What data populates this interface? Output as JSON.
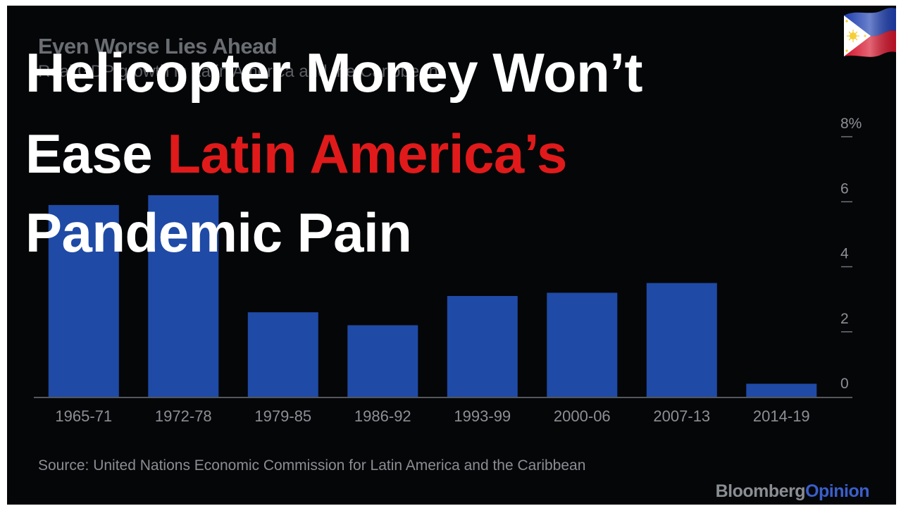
{
  "chart_data": {
    "type": "bar",
    "title": "Even Worse Lies Ahead",
    "subtitle": "Real GDP growth in Latin America and the Caribbean",
    "categories": [
      "1965-71",
      "1972-78",
      "1979-85",
      "1986-92",
      "1993-99",
      "2000-06",
      "2007-13",
      "2014-19"
    ],
    "values": [
      5.9,
      6.2,
      2.6,
      2.2,
      3.1,
      3.2,
      3.5,
      0.4
    ],
    "series": [
      {
        "values": [
          5.9,
          6.2,
          2.6,
          2.2,
          3.1,
          3.2,
          3.5,
          0.4
        ],
        "color": "#1f4aa6"
      }
    ],
    "ylim": [
      0,
      8
    ],
    "yticks": [
      0,
      2,
      4,
      6,
      8
    ],
    "ytick_labels": [
      "0",
      "2",
      "4",
      "6",
      "8%"
    ],
    "xlabel": "",
    "ylabel": "",
    "grid": false,
    "y_axis_side": "right",
    "bar_color": "#1f4aa6",
    "background": "#050608"
  },
  "overlay": {
    "headline_line1": "Helicopter Money Won’t",
    "headline_line2_white": "Ease ",
    "headline_line2_red": "Latin America’s",
    "headline_line3": "Pandemic Pain",
    "headline_color": "#ffffff",
    "accent_color": "#e01a1a"
  },
  "footer": {
    "source": "Source: United Nations Economic Commission for Latin America and the Caribbean",
    "brand_bloomberg": "Bloomberg",
    "brand_opinion": "Opinion"
  },
  "logo": {
    "icon": "philippine-flag-icon"
  }
}
